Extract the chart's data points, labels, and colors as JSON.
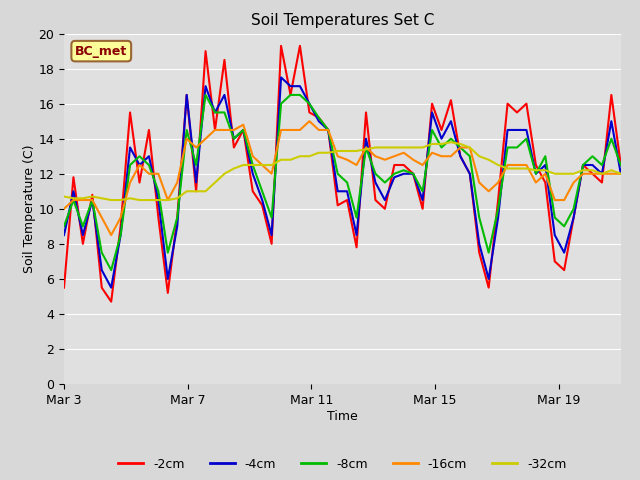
{
  "title": "Soil Temperatures Set C",
  "xlabel": "Time",
  "ylabel": "Soil Temperature (C)",
  "ylim": [
    0,
    20
  ],
  "yticks": [
    0,
    2,
    4,
    6,
    8,
    10,
    12,
    14,
    16,
    18,
    20
  ],
  "xtick_labels": [
    "Mar 3",
    "Mar 7",
    "Mar 11",
    "Mar 15",
    "Mar 19"
  ],
  "fig_bg_color": "#d8d8d8",
  "plot_bg": "#e0e0e0",
  "annotation_text": "BC_met",
  "annotation_color": "#8b0000",
  "annotation_bg": "#ffff99",
  "legend_labels": [
    "-2cm",
    "-4cm",
    "-8cm",
    "-16cm",
    "-32cm"
  ],
  "line_colors": [
    "#ff0000",
    "#0000cc",
    "#00bb00",
    "#ff8800",
    "#cccc00"
  ],
  "neg2cm": [
    5.5,
    11.8,
    8.0,
    10.8,
    5.5,
    4.7,
    9.0,
    15.5,
    11.5,
    14.5,
    9.5,
    5.2,
    9.5,
    16.5,
    11.0,
    19.0,
    14.5,
    18.5,
    13.5,
    14.5,
    11.0,
    10.2,
    8.0,
    19.3,
    16.5,
    19.3,
    15.5,
    15.2,
    14.5,
    10.2,
    10.5,
    7.8,
    15.5,
    10.5,
    10.0,
    12.5,
    12.5,
    12.0,
    10.0,
    16.0,
    14.5,
    16.2,
    13.0,
    12.0,
    7.5,
    5.5,
    10.5,
    16.0,
    15.5,
    16.0,
    12.5,
    11.5,
    7.0,
    6.5,
    9.5,
    12.5,
    12.0,
    11.5,
    16.5,
    12.5
  ],
  "neg4cm": [
    8.5,
    11.0,
    8.5,
    10.5,
    6.5,
    5.5,
    8.5,
    13.5,
    12.5,
    13.0,
    10.5,
    6.0,
    9.0,
    16.5,
    11.5,
    17.0,
    15.5,
    16.5,
    14.0,
    14.5,
    12.0,
    10.5,
    8.5,
    17.5,
    17.0,
    17.0,
    16.0,
    15.0,
    14.5,
    11.0,
    11.0,
    8.5,
    14.0,
    11.5,
    10.5,
    11.8,
    12.0,
    12.0,
    10.5,
    15.5,
    14.0,
    15.0,
    13.0,
    12.0,
    8.0,
    6.0,
    9.5,
    14.5,
    14.5,
    14.5,
    12.0,
    12.5,
    8.5,
    7.5,
    9.5,
    12.5,
    12.5,
    12.0,
    15.0,
    12.0
  ],
  "neg8cm": [
    9.0,
    10.5,
    9.0,
    10.5,
    7.5,
    6.5,
    8.5,
    12.5,
    13.0,
    12.5,
    11.0,
    7.5,
    9.5,
    14.5,
    12.5,
    16.5,
    15.5,
    15.5,
    14.0,
    14.5,
    12.5,
    11.0,
    9.5,
    16.0,
    16.5,
    16.5,
    16.0,
    15.2,
    14.5,
    12.0,
    11.5,
    9.5,
    13.5,
    12.0,
    11.5,
    12.0,
    12.2,
    12.0,
    11.0,
    14.5,
    13.5,
    14.0,
    13.5,
    13.0,
    9.5,
    7.5,
    10.0,
    13.5,
    13.5,
    14.0,
    12.0,
    13.0,
    9.5,
    9.0,
    10.0,
    12.5,
    13.0,
    12.5,
    14.0,
    12.5
  ],
  "neg16cm": [
    10.0,
    10.5,
    10.5,
    10.5,
    9.5,
    8.5,
    9.5,
    11.5,
    12.5,
    12.0,
    12.0,
    10.5,
    11.5,
    14.0,
    13.5,
    14.0,
    14.5,
    14.5,
    14.5,
    14.8,
    13.0,
    12.5,
    12.0,
    14.5,
    14.5,
    14.5,
    15.0,
    14.5,
    14.5,
    13.0,
    12.8,
    12.5,
    13.5,
    13.0,
    12.8,
    13.0,
    13.2,
    12.8,
    12.5,
    13.2,
    13.0,
    13.0,
    13.5,
    13.5,
    11.5,
    11.0,
    11.5,
    12.5,
    12.5,
    12.5,
    11.5,
    12.0,
    10.5,
    10.5,
    11.5,
    12.0,
    12.0,
    12.0,
    12.0,
    12.0
  ],
  "neg32cm": [
    10.7,
    10.6,
    10.6,
    10.7,
    10.6,
    10.5,
    10.5,
    10.6,
    10.5,
    10.5,
    10.5,
    10.5,
    10.6,
    11.0,
    11.0,
    11.0,
    11.5,
    12.0,
    12.3,
    12.5,
    12.5,
    12.5,
    12.5,
    12.8,
    12.8,
    13.0,
    13.0,
    13.2,
    13.2,
    13.3,
    13.3,
    13.3,
    13.4,
    13.5,
    13.5,
    13.5,
    13.5,
    13.5,
    13.5,
    13.7,
    13.7,
    13.8,
    13.7,
    13.5,
    13.0,
    12.8,
    12.5,
    12.3,
    12.3,
    12.3,
    12.2,
    12.2,
    12.0,
    12.0,
    12.0,
    12.2,
    12.2,
    12.0,
    12.2,
    12.0
  ]
}
